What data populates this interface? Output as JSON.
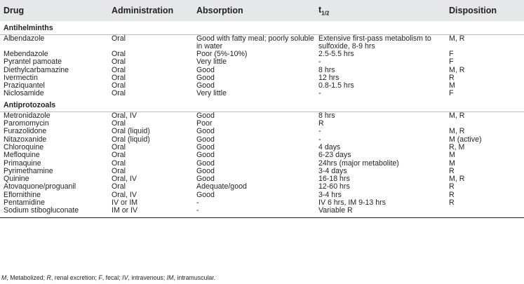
{
  "table": {
    "headers": {
      "drug": "Drug",
      "administration": "Administration",
      "absorption": "Absorption",
      "half_life_base": "t",
      "half_life_sub": "1/2",
      "disposition": "Disposition"
    },
    "sections": [
      {
        "title": "Antihelminths",
        "rows": [
          {
            "drug": "Albendazole",
            "administration": "Oral",
            "absorption": "Good with fatty meal; poorly soluble in water",
            "half_life": "Extensive first-pass metabolism to sulfoxide, 8-9 hrs",
            "disposition": "M, R"
          },
          {
            "drug": "Mebendazole",
            "administration": "Oral",
            "absorption": "Poor (5%-10%)",
            "half_life": "2.5-5.5 hrs",
            "disposition": "F"
          },
          {
            "drug": "Pyrantel pamoate",
            "administration": "Oral",
            "absorption": "Very little",
            "half_life": "-",
            "disposition": "F"
          },
          {
            "drug": "Diethylcarbamazine",
            "administration": "Oral",
            "absorption": "Good",
            "half_life": "8 hrs",
            "disposition": "M, R"
          },
          {
            "drug": "Ivermectin",
            "administration": "Oral",
            "absorption": "Good",
            "half_life": "12 hrs",
            "disposition": "R"
          },
          {
            "drug": "Praziquantel",
            "administration": "Oral",
            "absorption": "Good",
            "half_life": "0.8-1.5 hrs",
            "disposition": "M"
          },
          {
            "drug": "Niclosamide",
            "administration": "Oral",
            "absorption": "Very little",
            "half_life": "-",
            "disposition": "F"
          }
        ]
      },
      {
        "title": "Antiprotozoals",
        "rows": [
          {
            "drug": "Metronidazole",
            "administration": "Oral, IV",
            "absorption": "Good",
            "half_life": "8 hrs",
            "disposition": "M, R"
          },
          {
            "drug": "Paromomycin",
            "administration": "Oral",
            "absorption": "Poor",
            "half_life": "R",
            "disposition": ""
          },
          {
            "drug": "Furazolidone",
            "administration": "Oral (liquid)",
            "absorption": "Good",
            "half_life": "-",
            "disposition": "M, R"
          },
          {
            "drug": "Nitazoxanide",
            "administration": "Oral (liquid)",
            "absorption": "Good",
            "half_life": "-",
            "disposition": "M (active)"
          },
          {
            "drug": "Chloroquine",
            "administration": "Oral",
            "absorption": "Good",
            "half_life": "4 days",
            "disposition": "R, M"
          },
          {
            "drug": "Mefloquine",
            "administration": "Oral",
            "absorption": "Good",
            "half_life": "6-23 days",
            "disposition": "M"
          },
          {
            "drug": "Primaquine",
            "administration": "Oral",
            "absorption": "Good",
            "half_life": "24hrs (major metabolite)",
            "disposition": "M"
          },
          {
            "drug": "Pyrimethamine",
            "administration": "Oral",
            "absorption": "Good",
            "half_life": "3-4 days",
            "disposition": "R"
          },
          {
            "drug": "Quinine",
            "administration": "Oral, IV",
            "absorption": "Good",
            "half_life": "16-18 hrs",
            "disposition": "M, R"
          },
          {
            "drug": "Atovaquone/proguanil",
            "administration": "Oral",
            "absorption": "Adequate/good",
            "half_life": "12-60 hrs",
            "disposition": "R"
          },
          {
            "drug": "Eflornithine",
            "administration": "Oral, IV",
            "absorption": "Good",
            "half_life": "3-4 hrs",
            "disposition": "R"
          },
          {
            "drug": "Pentamidine",
            "administration": "IV or IM",
            "absorption": "-",
            "half_life": "IV 6 hrs, IM 9-13 hrs",
            "disposition": "R"
          },
          {
            "drug": "Sodium stibogluconate",
            "administration": "IM or IV",
            "absorption": "-",
            "half_life": "Variable R",
            "disposition": ""
          }
        ]
      }
    ]
  },
  "footnote": {
    "parts": [
      {
        "text": "M",
        "italic": true
      },
      {
        "text": ", Metabolized; ",
        "italic": false
      },
      {
        "text": "R",
        "italic": true
      },
      {
        "text": ", renal excretion; ",
        "italic": false
      },
      {
        "text": "F",
        "italic": true
      },
      {
        "text": ", fecal; ",
        "italic": false
      },
      {
        "text": "IV",
        "italic": true
      },
      {
        "text": ", intravenous; ",
        "italic": false
      },
      {
        "text": "IM",
        "italic": true
      },
      {
        "text": ", intramuscular.",
        "italic": false
      }
    ]
  }
}
